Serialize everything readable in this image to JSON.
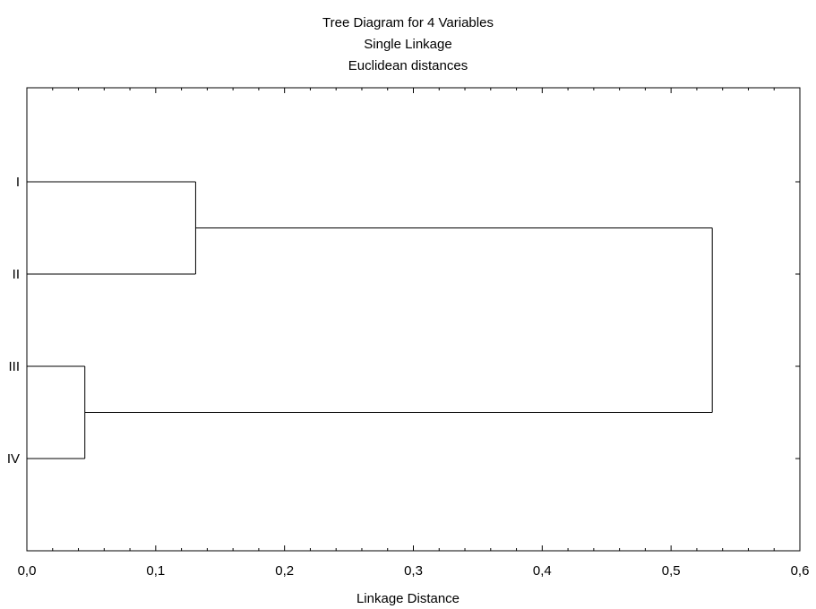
{
  "chart_data": {
    "type": "dendrogram",
    "title": "Tree Diagram for 4   Variables",
    "subtitle": [
      "Single Linkage",
      "Euclidean distances"
    ],
    "xlabel": "Linkage Distance",
    "ylabel": "",
    "xlim": [
      0,
      0.6
    ],
    "x_ticks": [
      "0,0",
      "0,1",
      "0,2",
      "0,3",
      "0,4",
      "0,5",
      "0,6"
    ],
    "x_tick_values": [
      0,
      0.1,
      0.2,
      0.3,
      0.4,
      0.5,
      0.6
    ],
    "leaves": [
      "I",
      "II",
      "III",
      "IV"
    ],
    "merges": [
      {
        "left": "III",
        "right": "IV",
        "distance": 0.045
      },
      {
        "left": "I",
        "right": "II",
        "distance": 0.131
      },
      {
        "left": "I+II",
        "right": "III+IV",
        "distance": 0.532
      }
    ],
    "grid": false,
    "line_color": "#000000"
  }
}
